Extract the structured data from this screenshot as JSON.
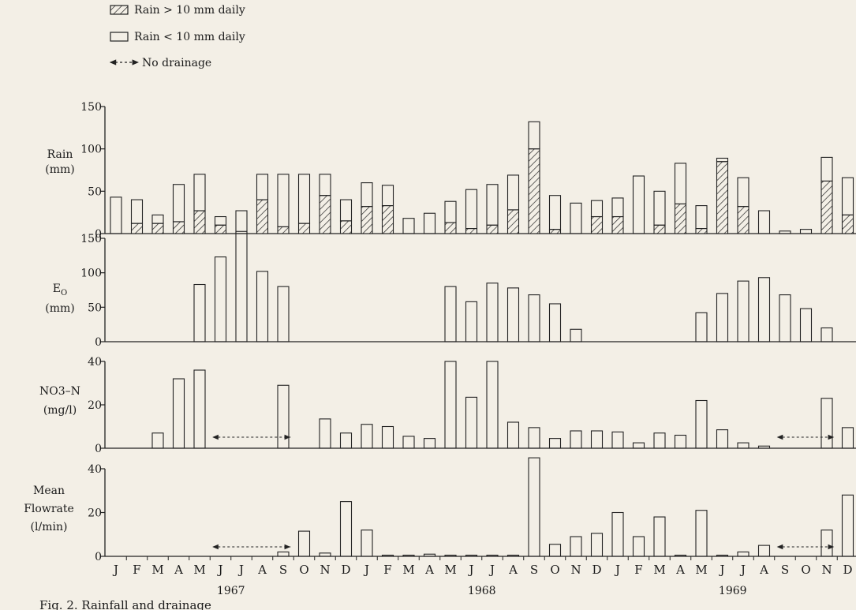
{
  "legend": {
    "items": [
      {
        "label": "Rain > 10 mm daily",
        "style": "hatched"
      },
      {
        "label": "Rain < 10 mm daily",
        "style": "open"
      },
      {
        "label": "No drainage",
        "style": "dashed-arrow"
      }
    ]
  },
  "caption": "Fig. 2. Rainfall and drainage",
  "chart_data": [
    {
      "type": "bar",
      "stacked": true,
      "ylabel": [
        "Rain",
        "(mm)"
      ],
      "ylim": [
        0,
        150
      ],
      "yticks": [
        0,
        50,
        100,
        150
      ],
      "months": [
        "J",
        "F",
        "M",
        "A",
        "M",
        "J",
        "J",
        "A",
        "S",
        "O",
        "N",
        "D",
        "J",
        "F",
        "M",
        "A",
        "M",
        "J",
        "J",
        "A",
        "S",
        "O",
        "N",
        "D",
        "J",
        "F",
        "M",
        "A",
        "M",
        "J",
        "J",
        "A",
        "S",
        "O",
        "N",
        "D"
      ],
      "years": [
        {
          "label": "1967",
          "start": 0
        },
        {
          "label": "1968",
          "start": 12
        },
        {
          "label": "1969",
          "start": 24
        }
      ],
      "series": [
        {
          "name": "Rain > 10 mm daily",
          "values": [
            0,
            12,
            12,
            14,
            27,
            10,
            0,
            40,
            8,
            12,
            45,
            15,
            32,
            33,
            0,
            0,
            13,
            6,
            10,
            28,
            100,
            5,
            0,
            20,
            20,
            0,
            10,
            35,
            6,
            85,
            32,
            0,
            0,
            0,
            62,
            22
          ]
        },
        {
          "name": "Rain < 10 mm daily",
          "values": [
            43,
            28,
            10,
            44,
            43,
            10,
            27,
            30,
            62,
            58,
            25,
            25,
            28,
            24,
            18,
            24,
            25,
            46,
            48,
            41,
            32,
            40,
            36,
            19,
            22,
            68,
            40,
            48,
            27,
            4,
            34,
            27,
            3,
            5,
            28,
            44
          ]
        }
      ]
    },
    {
      "type": "bar",
      "ylabel": [
        "E",
        "O",
        "(mm)"
      ],
      "ylim": [
        0,
        150
      ],
      "yticks": [
        0,
        50,
        100,
        150
      ],
      "values": [
        null,
        null,
        null,
        null,
        83,
        123,
        160,
        102,
        80,
        null,
        null,
        null,
        null,
        null,
        null,
        null,
        80,
        58,
        85,
        78,
        68,
        55,
        18,
        null,
        null,
        null,
        null,
        null,
        42,
        70,
        88,
        93,
        68,
        48,
        20,
        null
      ]
    },
    {
      "type": "bar",
      "ylabel": [
        "NO3–N",
        "(mg/l)"
      ],
      "ylim": [
        0,
        40
      ],
      "yticks": [
        0,
        20,
        40
      ],
      "values": [
        null,
        null,
        7,
        32,
        36,
        null,
        null,
        null,
        29,
        null,
        13.5,
        7,
        11,
        10,
        5.5,
        4.5,
        40,
        23.5,
        40,
        12,
        9.5,
        4.5,
        8,
        8,
        7.5,
        2.5,
        7,
        6,
        22,
        8.5,
        2.5,
        1,
        null,
        null,
        23,
        9.5
      ],
      "no_drainage": [
        [
          4.5,
          8.5
        ],
        [
          31.5,
          34.5
        ]
      ]
    },
    {
      "type": "bar",
      "ylabel": [
        "Mean",
        "Flowrate",
        "(l/min)"
      ],
      "ylim": [
        0,
        40
      ],
      "yticks": [
        0,
        20,
        40
      ],
      "values": [
        null,
        null,
        null,
        null,
        null,
        null,
        null,
        null,
        2,
        11.5,
        1.5,
        25,
        12,
        0,
        0,
        1,
        0,
        0,
        0,
        0,
        45,
        5.5,
        9,
        10.5,
        20,
        9,
        18,
        0,
        21,
        0,
        2,
        5,
        null,
        null,
        12,
        28
      ],
      "no_drainage": [
        [
          4.5,
          8.5
        ],
        [
          31.5,
          34.5
        ]
      ]
    }
  ]
}
